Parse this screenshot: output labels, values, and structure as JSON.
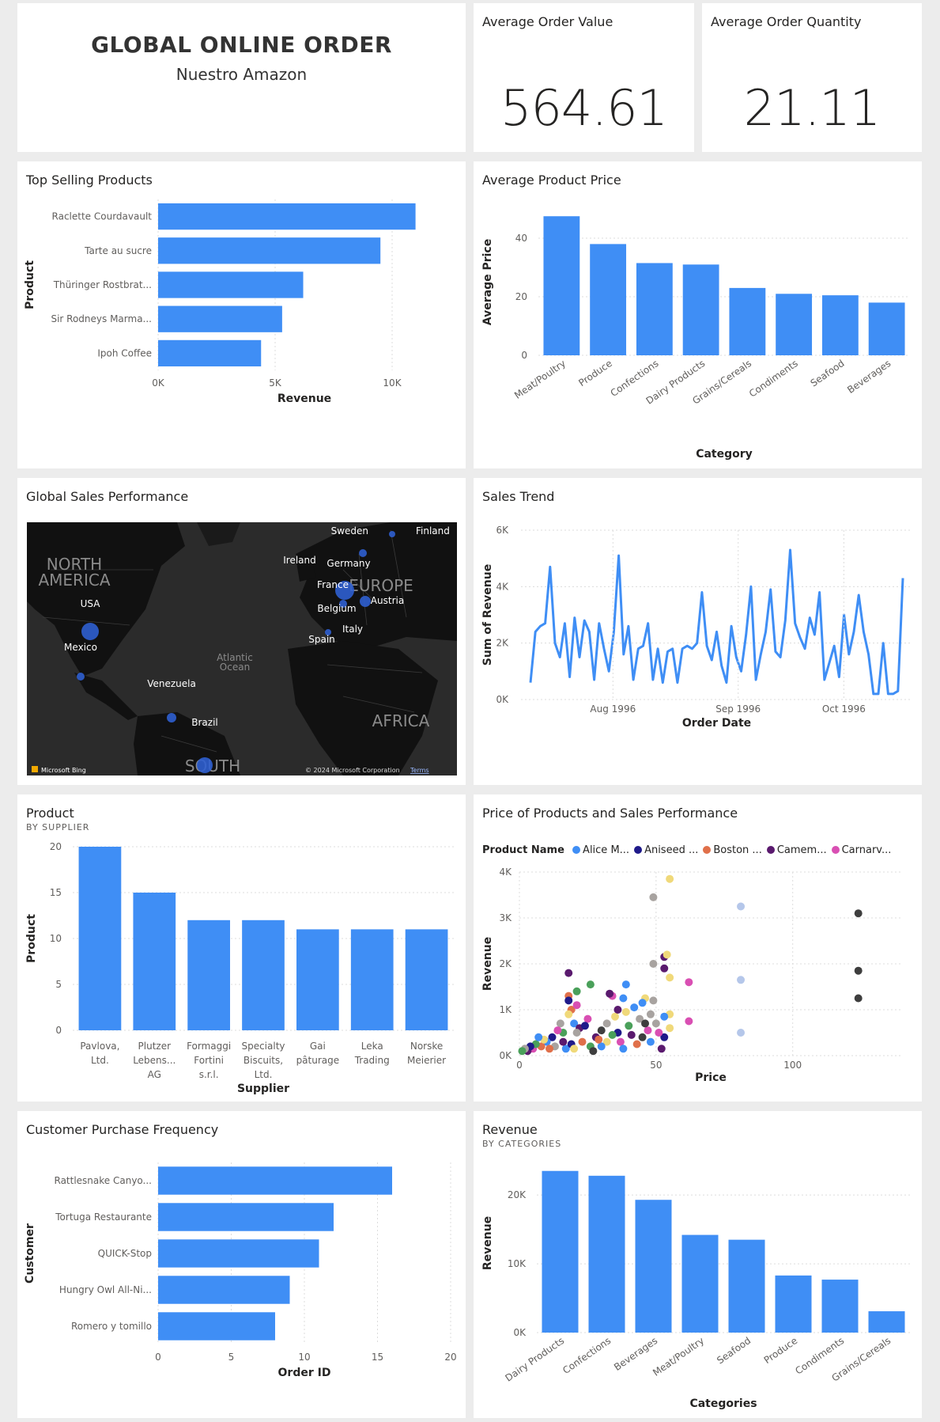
{
  "header": {
    "title": "GLOBAL ONLINE ORDER",
    "subtitle": "Nuestro Amazon"
  },
  "kpis": [
    {
      "label": "Average Order Value",
      "value": "564.61"
    },
    {
      "label": "Average Order Quantity",
      "value": "21.11"
    }
  ],
  "map": {
    "title": "Global Sales Performance",
    "region_labels": [
      "NORTH AMERICA",
      "EUROPE",
      "AFRICA",
      "SOUTH",
      "Atlantic Ocean"
    ],
    "countries": [
      "Sweden",
      "Finland",
      "Ireland",
      "Germany",
      "France",
      "Austria",
      "Belgium",
      "Italy",
      "Spain",
      "USA",
      "Mexico",
      "Venezuela",
      "Brazil"
    ],
    "attribution_left": "Microsoft Bing",
    "attribution_right": "© 2024 Microsoft Corporation",
    "terms": "Terms"
  },
  "chart_data": [
    {
      "id": "top_selling",
      "type": "bar",
      "orientation": "horizontal",
      "title": "Top Selling Products",
      "xlabel": "Revenue",
      "ylabel": "Product",
      "categories": [
        "Raclette Courdavault",
        "Tarte au sucre",
        "Thüringer Rostbrat...",
        "Sir Rodneys Marma...",
        "Ipoh Coffee"
      ],
      "values": [
        11000,
        9500,
        6200,
        5300,
        4400
      ],
      "xlim": [
        0,
        12500
      ],
      "ticks": [
        0,
        5000,
        10000
      ],
      "tick_labels": [
        "0K",
        "5K",
        "10K"
      ]
    },
    {
      "id": "avg_price",
      "type": "bar",
      "title": "Average Product Price",
      "xlabel": "Category",
      "ylabel": "Average Price",
      "categories": [
        "Meat/Poultry",
        "Produce",
        "Confections",
        "Dairy Products",
        "Grains/Cereals",
        "Condiments",
        "Seafood",
        "Beverages"
      ],
      "values": [
        47.5,
        38,
        31.5,
        31,
        23,
        21,
        20.5,
        18
      ],
      "ylim": [
        0,
        50
      ],
      "ticks": [
        0,
        20,
        40
      ],
      "tick_labels": [
        "0",
        "20",
        "40"
      ]
    },
    {
      "id": "sales_trend",
      "type": "line",
      "title": "Sales Trend",
      "xlabel": "Order Date",
      "ylabel": "Sum of Revenue",
      "ylim": [
        0,
        6000
      ],
      "ticks": [
        0,
        2000,
        4000,
        6000
      ],
      "tick_labels": [
        "0K",
        "2K",
        "4K",
        "6K"
      ],
      "x_tick_labels": [
        "Aug 1996",
        "Sep 1996",
        "Oct 1996"
      ],
      "values": [
        600,
        2400,
        2600,
        2700,
        4700,
        2000,
        1500,
        2700,
        800,
        2900,
        1500,
        2800,
        2400,
        700,
        2700,
        1800,
        1000,
        2400,
        5100,
        1600,
        2600,
        700,
        1800,
        1900,
        2700,
        700,
        1800,
        600,
        1700,
        1800,
        600,
        1800,
        1900,
        1800,
        2000,
        3800,
        1900,
        1400,
        2400,
        1200,
        600,
        2600,
        1500,
        1000,
        2300,
        4000,
        700,
        1600,
        2400,
        3900,
        1700,
        1500,
        2800,
        5300,
        2700,
        2200,
        1800,
        2900,
        2300,
        3800,
        700,
        1300,
        1900,
        800,
        3000,
        1600,
        2400,
        3700,
        2400,
        1600,
        200,
        200,
        2000,
        200,
        200,
        300,
        4300
      ]
    },
    {
      "id": "product_by_supplier",
      "type": "bar",
      "title": "Product",
      "subtitle": "BY SUPPLIER",
      "xlabel": "Supplier",
      "ylabel": "Product",
      "categories": [
        "Pavlova, Ltd.",
        "Plutzer Lebens... AG",
        "Formaggi Fortini s.r.l.",
        "Specialty Biscuits, Ltd.",
        "Gai pâturage",
        "Leka Trading",
        "Norske Meierier"
      ],
      "category_lines": [
        [
          "Pavlova,",
          "Ltd."
        ],
        [
          "Plutzer",
          "Lebens...",
          "AG"
        ],
        [
          "Formaggi",
          "Fortini",
          "s.r.l."
        ],
        [
          "Specialty",
          "Biscuits,",
          "Ltd."
        ],
        [
          "Gai",
          "pâturage"
        ],
        [
          "Leka",
          "Trading"
        ],
        [
          "Norske",
          "Meierier"
        ]
      ],
      "values": [
        20,
        15,
        12,
        12,
        11,
        11,
        11
      ],
      "ylim": [
        0,
        20
      ],
      "ticks": [
        0,
        5,
        10,
        15,
        20
      ],
      "tick_labels": [
        "0",
        "5",
        "10",
        "15",
        "20"
      ]
    },
    {
      "id": "price_vs_sales",
      "type": "scatter",
      "title": "Price of Products and Sales Performance",
      "xlabel": "Price",
      "ylabel": "Revenue",
      "legend_title": "Product Name",
      "legend": [
        {
          "name": "Alice M...",
          "color": "#3f8ef5"
        },
        {
          "name": "Aniseed ...",
          "color": "#1f1a8a"
        },
        {
          "name": "Boston ...",
          "color": "#e0704a"
        },
        {
          "name": "Camem...",
          "color": "#5a1a6e"
        },
        {
          "name": "Carnarv...",
          "color": "#d94fb3"
        }
      ],
      "xlim": [
        0,
        140
      ],
      "ylim": [
        0,
        4000
      ],
      "x_ticks": [
        0,
        50,
        100
      ],
      "x_tick_labels": [
        "0",
        "50",
        "100"
      ],
      "ticks": [
        0,
        1000,
        2000,
        3000,
        4000
      ],
      "tick_labels": [
        "0K",
        "1K",
        "2K",
        "3K",
        "4K"
      ],
      "points": [
        [
          55,
          3850,
          "#f0d97a"
        ],
        [
          49,
          3450,
          "#a8a3a0"
        ],
        [
          81,
          3250,
          "#b5c7ea"
        ],
        [
          124,
          3100,
          "#3e3e3e"
        ],
        [
          53,
          2150,
          "#5a1a6e"
        ],
        [
          54,
          2200,
          "#f0d97a"
        ],
        [
          49,
          2000,
          "#a8a3a0"
        ],
        [
          53,
          1900,
          "#5a1a6e"
        ],
        [
          18,
          1800,
          "#5a1a6e"
        ],
        [
          55,
          1700,
          "#f0d97a"
        ],
        [
          62,
          1600,
          "#d94fb3"
        ],
        [
          81,
          1650,
          "#b5c7ea"
        ],
        [
          124,
          1850,
          "#3e3e3e"
        ],
        [
          26,
          1550,
          "#4aa05a"
        ],
        [
          39,
          1550,
          "#3f8ef5"
        ],
        [
          21,
          1400,
          "#4aa05a"
        ],
        [
          34,
          1300,
          "#d94fb3"
        ],
        [
          33,
          1350,
          "#5a1a6e"
        ],
        [
          18,
          1300,
          "#e0704a"
        ],
        [
          18,
          1200,
          "#1f1a8a"
        ],
        [
          38,
          1250,
          "#3f8ef5"
        ],
        [
          46,
          1250,
          "#f0d97a"
        ],
        [
          45,
          1150,
          "#3f8ef5"
        ],
        [
          49,
          1200,
          "#a8a3a0"
        ],
        [
          124,
          1250,
          "#3e3e3e"
        ],
        [
          62,
          750,
          "#d94fb3"
        ],
        [
          81,
          500,
          "#b5c7ea"
        ],
        [
          55,
          900,
          "#f0d97a"
        ],
        [
          55,
          600,
          "#f0d97a"
        ],
        [
          50,
          700,
          "#a8a3a0"
        ],
        [
          48,
          900,
          "#a8a3a0"
        ],
        [
          53,
          400,
          "#1f1a8a"
        ],
        [
          52,
          150,
          "#5a1a6e"
        ],
        [
          19,
          1000,
          "#e0704a"
        ],
        [
          18,
          900,
          "#f0d97a"
        ],
        [
          21,
          1100,
          "#d94fb3"
        ],
        [
          25,
          800,
          "#d94fb3"
        ],
        [
          20,
          700,
          "#3f8ef5"
        ],
        [
          22,
          600,
          "#5a1a6e"
        ],
        [
          16,
          500,
          "#4aa05a"
        ],
        [
          15,
          700,
          "#a8a3a0"
        ],
        [
          12,
          400,
          "#1f1a8a"
        ],
        [
          10,
          300,
          "#3f8ef5"
        ],
        [
          8,
          200,
          "#e0704a"
        ],
        [
          5,
          150,
          "#d94fb3"
        ],
        [
          3,
          100,
          "#5a1a6e"
        ],
        [
          6,
          250,
          "#4aa05a"
        ],
        [
          9,
          350,
          "#f0d97a"
        ],
        [
          13,
          200,
          "#a8a3a0"
        ],
        [
          17,
          150,
          "#3f8ef5"
        ],
        [
          19,
          250,
          "#1f1a8a"
        ],
        [
          23,
          300,
          "#e0704a"
        ],
        [
          26,
          200,
          "#4aa05a"
        ],
        [
          28,
          400,
          "#5a1a6e"
        ],
        [
          30,
          550,
          "#3e3e3e"
        ],
        [
          32,
          700,
          "#a8a3a0"
        ],
        [
          35,
          850,
          "#f0d97a"
        ],
        [
          36,
          500,
          "#1f1a8a"
        ],
        [
          37,
          300,
          "#d94fb3"
        ],
        [
          38,
          150,
          "#3f8ef5"
        ],
        [
          40,
          650,
          "#4aa05a"
        ],
        [
          41,
          450,
          "#5a1a6e"
        ],
        [
          43,
          250,
          "#e0704a"
        ],
        [
          44,
          800,
          "#a8a3a0"
        ],
        [
          45,
          400,
          "#3e3e3e"
        ],
        [
          47,
          550,
          "#d94fb3"
        ],
        [
          32,
          300,
          "#f0d97a"
        ],
        [
          34,
          450,
          "#4aa05a"
        ],
        [
          36,
          1000,
          "#5a1a6e"
        ],
        [
          30,
          200,
          "#3f8ef5"
        ],
        [
          21,
          500,
          "#a8a3a0"
        ],
        [
          24,
          650,
          "#1f1a8a"
        ],
        [
          14,
          550,
          "#d94fb3"
        ],
        [
          11,
          150,
          "#e0704a"
        ],
        [
          7,
          400,
          "#3f8ef5"
        ],
        [
          4,
          200,
          "#1f1a8a"
        ],
        [
          16,
          300,
          "#5a1a6e"
        ],
        [
          20,
          150,
          "#f0d97a"
        ],
        [
          27,
          100,
          "#3e3e3e"
        ],
        [
          29,
          350,
          "#e0704a"
        ],
        [
          39,
          950,
          "#f0d97a"
        ],
        [
          42,
          1050,
          "#3f8ef5"
        ],
        [
          46,
          700,
          "#3e3e3e"
        ],
        [
          48,
          300,
          "#3f8ef5"
        ],
        [
          51,
          500,
          "#d94fb3"
        ],
        [
          53,
          850,
          "#3f8ef5"
        ],
        [
          2,
          150,
          "#a8a3a0"
        ],
        [
          1,
          100,
          "#4aa05a"
        ]
      ]
    },
    {
      "id": "purchase_frequency",
      "type": "bar",
      "orientation": "horizontal",
      "title": "Customer Purchase Frequency",
      "xlabel": "Order ID",
      "ylabel": "Customer",
      "categories": [
        "Rattlesnake Canyo...",
        "Tortuga Restaurante",
        "QUICK-Stop",
        "Hungry Owl All-Ni...",
        "Romero y tomillo"
      ],
      "values": [
        16,
        12,
        11,
        9,
        8
      ],
      "xlim": [
        0,
        20
      ],
      "ticks": [
        0,
        5,
        10,
        15,
        20
      ],
      "tick_labels": [
        "0",
        "5",
        "10",
        "15",
        "20"
      ]
    },
    {
      "id": "revenue_by_category",
      "type": "bar",
      "title": "Revenue",
      "subtitle": "BY CATEGORIES",
      "xlabel": "Categories",
      "ylabel": "Revenue",
      "categories": [
        "Dairy Products",
        "Confections",
        "Beverages",
        "Meat/Poultry",
        "Seafood",
        "Produce",
        "Condiments",
        "Grains/Cereals"
      ],
      "values": [
        23500,
        22800,
        19300,
        14200,
        13500,
        8300,
        7700,
        3100
      ],
      "ylim": [
        0,
        26000
      ],
      "ticks": [
        0,
        10000,
        20000
      ],
      "tick_labels": [
        "0K",
        "10K",
        "20K"
      ]
    }
  ]
}
